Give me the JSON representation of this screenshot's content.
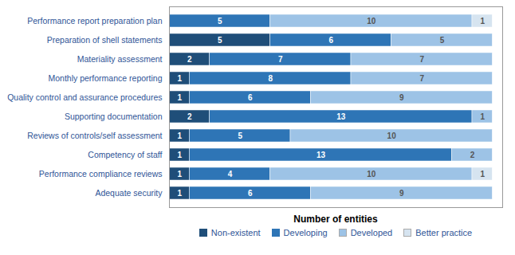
{
  "chart_data": {
    "type": "bar",
    "orientation": "horizontal",
    "stacked": true,
    "categories": [
      "Performance report preparation plan",
      "Preparation of shell statements",
      "Materiality assessment",
      "Monthly performance reporting",
      "Quality control and assurance procedures",
      "Supporting documentation",
      "Reviews of controls/self assessment",
      "Competency of staff",
      "Performance compliance reviews",
      "Adequate security"
    ],
    "series": [
      {
        "name": "Non-existent",
        "color": "#1F4E79",
        "values": [
          0,
          5,
          2,
          1,
          1,
          2,
          1,
          1,
          1,
          1
        ]
      },
      {
        "name": "Developing",
        "color": "#2E75B6",
        "values": [
          5,
          6,
          7,
          8,
          6,
          13,
          5,
          13,
          4,
          6
        ]
      },
      {
        "name": "Developed",
        "color": "#9DC3E6",
        "values": [
          10,
          5,
          7,
          7,
          9,
          1,
          10,
          2,
          10,
          9
        ]
      },
      {
        "name": "Better practice",
        "color": "#D6E4F0",
        "values": [
          1,
          0,
          0,
          0,
          0,
          0,
          0,
          0,
          1,
          0
        ]
      }
    ],
    "xlabel": "Number of entities",
    "xlim": [
      0,
      16.5
    ],
    "tick_labels": "y",
    "data_labels": true,
    "legend": "bottom",
    "grid": false
  }
}
